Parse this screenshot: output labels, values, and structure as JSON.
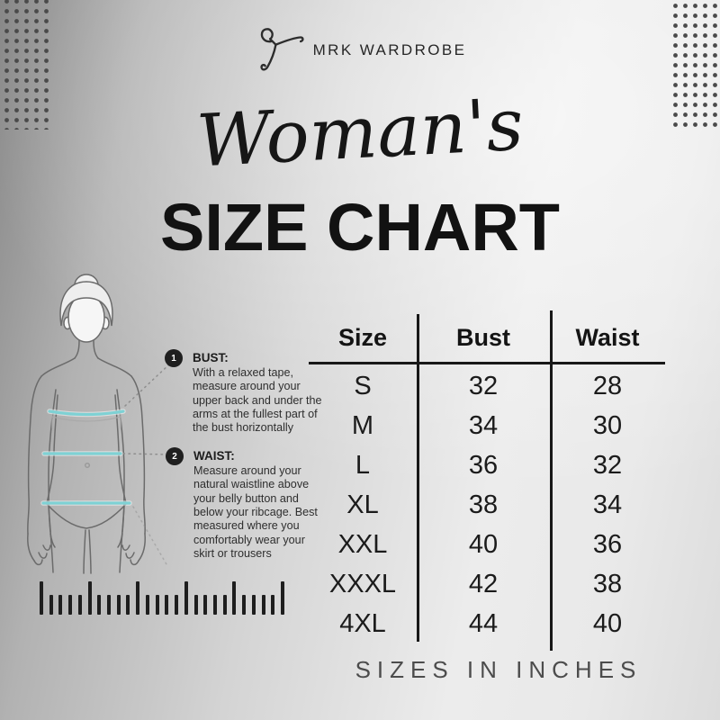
{
  "brand": {
    "name": "MRK WARDROBE",
    "logo_icon": "hanger-icon"
  },
  "title": {
    "script": "Woman's",
    "main": "SIZE CHART"
  },
  "notes": [
    {
      "number": "1",
      "label": "BUST:",
      "text": "With a relaxed tape, measure around your upper back and under the arms at the fullest part of the bust horizontally"
    },
    {
      "number": "2",
      "label": "WAIST:",
      "text": "Measure around your natural waistline above your belly button and below your ribcage. Best measured where you comfortably wear your skirt or trousers"
    }
  ],
  "table": {
    "headers": [
      "Size",
      "Bust",
      "Waist"
    ],
    "rows": [
      {
        "size": "S",
        "bust": "32",
        "waist": "28"
      },
      {
        "size": "M",
        "bust": "34",
        "waist": "30"
      },
      {
        "size": "L",
        "bust": "36",
        "waist": "32"
      },
      {
        "size": "XL",
        "bust": "38",
        "waist": "34"
      },
      {
        "size": "XXL",
        "bust": "40",
        "waist": "36"
      },
      {
        "size": "XXXL",
        "bust": "42",
        "waist": "38"
      },
      {
        "size": "4XL",
        "bust": "44",
        "waist": "40"
      }
    ]
  },
  "footer": {
    "note": "SIZES IN INCHES"
  },
  "chart_data": {
    "type": "table",
    "title": "Woman's Size Chart",
    "columns": [
      "Size",
      "Bust",
      "Waist"
    ],
    "rows": [
      [
        "S",
        32,
        28
      ],
      [
        "M",
        34,
        30
      ],
      [
        "L",
        36,
        32
      ],
      [
        "XL",
        38,
        34
      ],
      [
        "XXL",
        40,
        36
      ],
      [
        "XXXL",
        42,
        38
      ],
      [
        "4XL",
        44,
        40
      ]
    ],
    "units": "inches"
  },
  "colors": {
    "accent_teal": "#7ed1d4",
    "ink": "#181818",
    "badge": "#1f1f1f",
    "dots": "#4a4a4a",
    "footer_text": "#4c4c4c"
  }
}
